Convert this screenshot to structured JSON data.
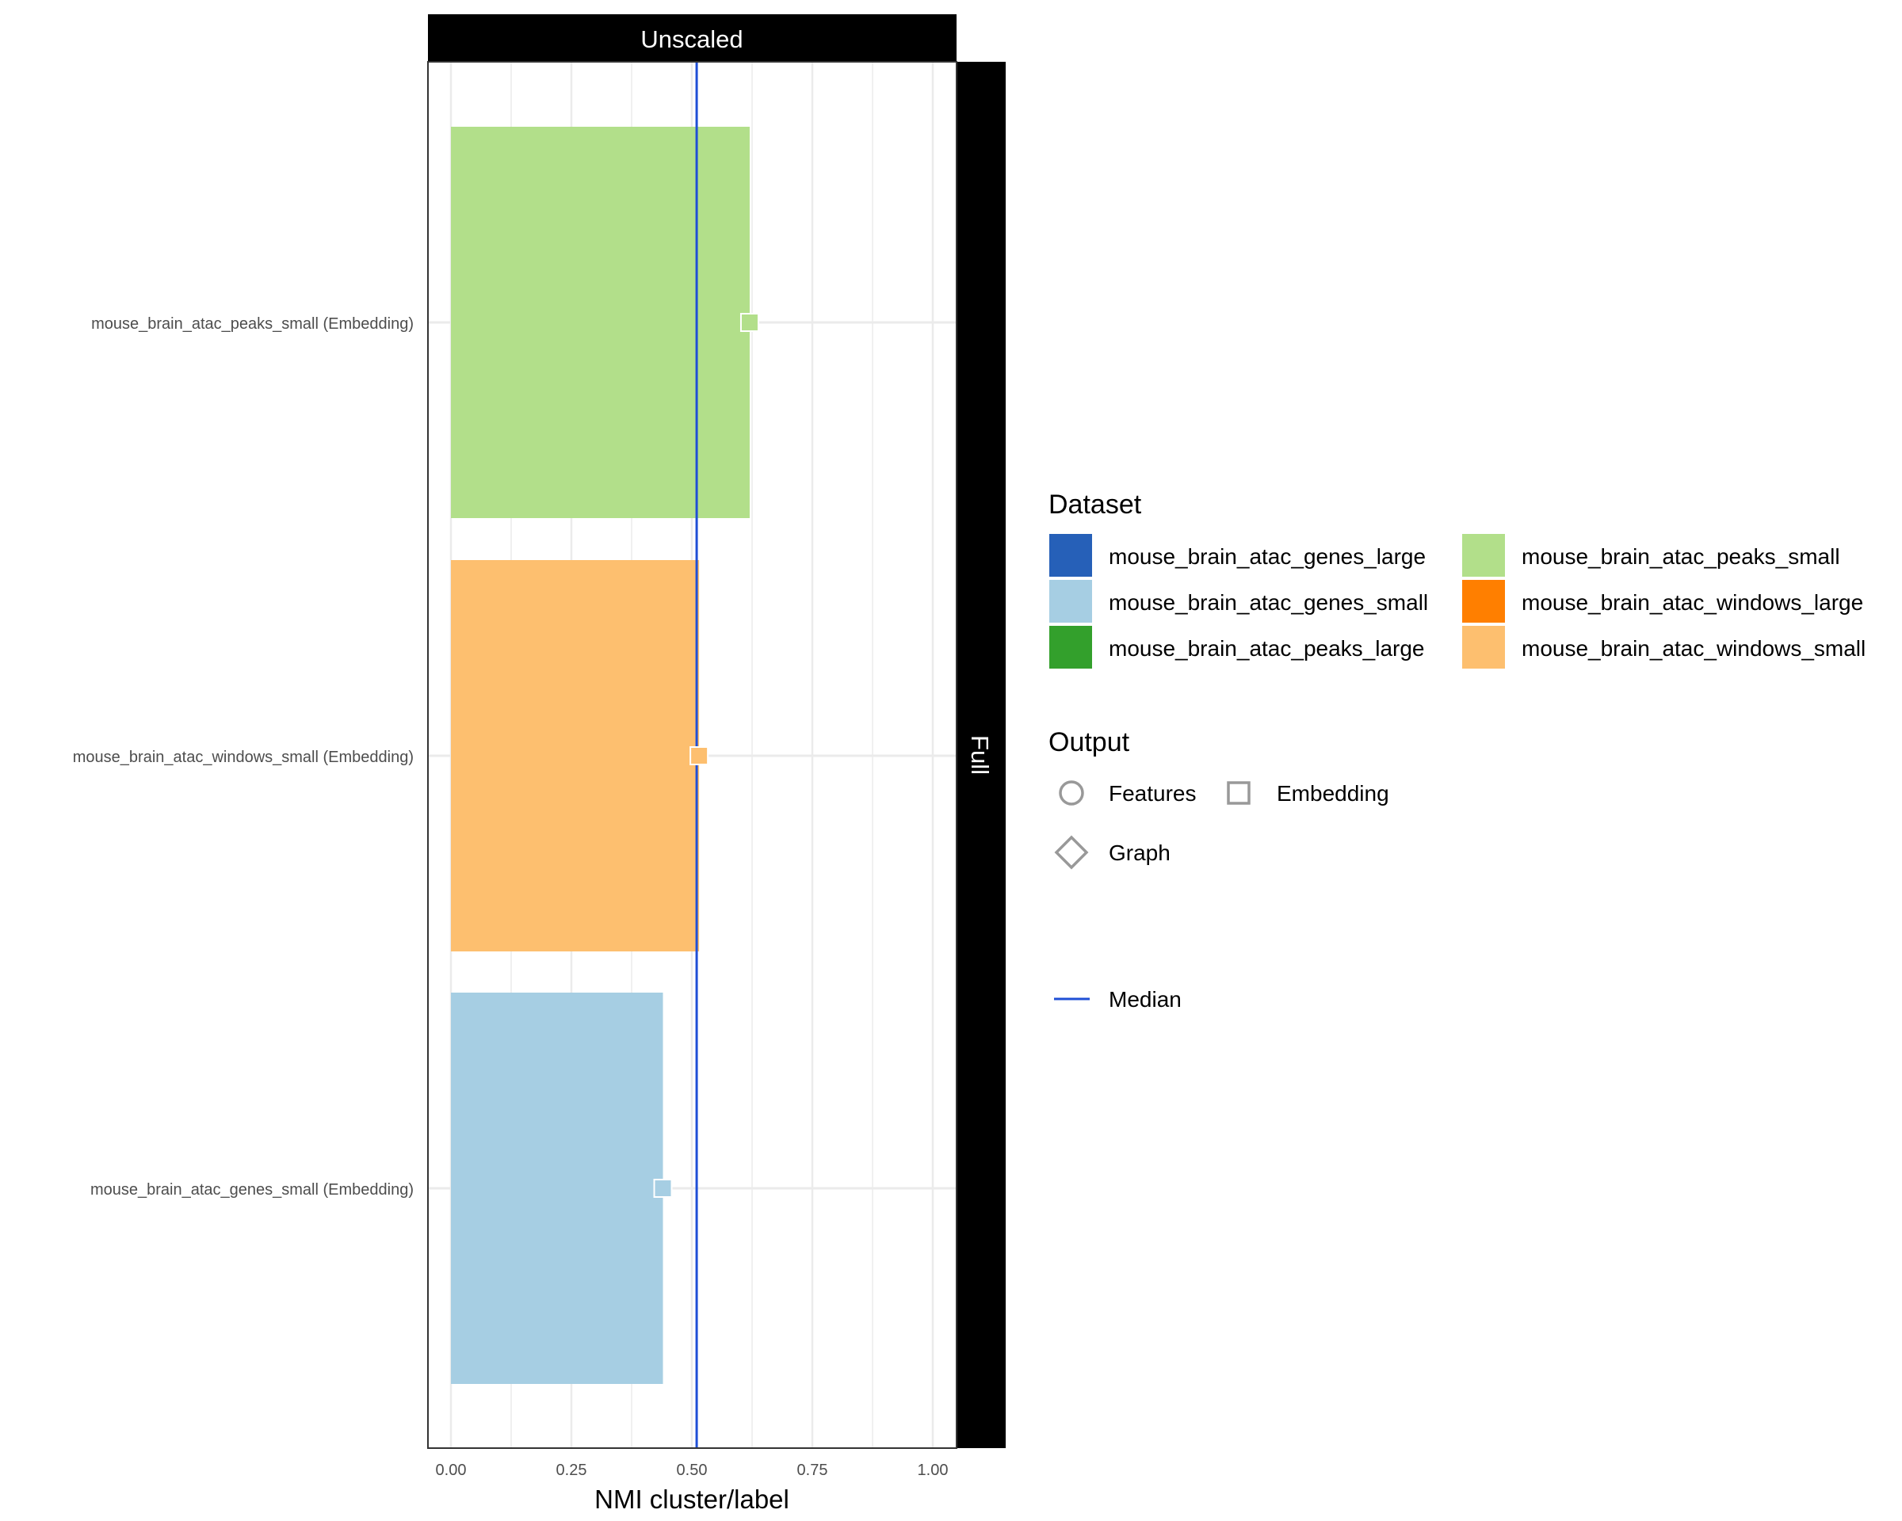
{
  "chart_data": {
    "type": "bar",
    "orientation": "horizontal",
    "facet_top_label": "Unscaled",
    "facet_side_label": "Full",
    "xlabel": "NMI cluster/label",
    "ylabel": "",
    "xlim": [
      0,
      1.05
    ],
    "x_ticks": [
      0,
      0.25,
      0.5,
      0.75,
      1.0
    ],
    "x_tick_labels": [
      "0.00",
      "0.25",
      "0.50",
      "0.75",
      "1.00"
    ],
    "grid": true,
    "categories": [
      "mouse_brain_atac_peaks_small (Embedding)",
      "mouse_brain_atac_windows_small (Embedding)",
      "mouse_brain_atac_genes_small (Embedding)"
    ],
    "values": [
      0.62,
      0.515,
      0.44
    ],
    "bar_colors": [
      "#b2df8a",
      "#fdbf6f",
      "#a6cee3"
    ],
    "marker_shape": "square",
    "median": 0.51,
    "median_color": "#1f4fd6",
    "legend_position": "right",
    "legends": {
      "dataset": {
        "title": "Dataset",
        "items": [
          {
            "label": "mouse_brain_atac_genes_large",
            "color": "#2660b8"
          },
          {
            "label": "mouse_brain_atac_genes_small",
            "color": "#a6cee3"
          },
          {
            "label": "mouse_brain_atac_peaks_large",
            "color": "#33a02c"
          },
          {
            "label": "mouse_brain_atac_peaks_small",
            "color": "#b2df8a"
          },
          {
            "label": "mouse_brain_atac_windows_large",
            "color": "#ff7f00"
          },
          {
            "label": "mouse_brain_atac_windows_small",
            "color": "#fdbf6f"
          }
        ]
      },
      "output": {
        "title": "Output",
        "items": [
          {
            "label": "Features",
            "shape": "circle"
          },
          {
            "label": "Embedding",
            "shape": "square"
          },
          {
            "label": "Graph",
            "shape": "diamond"
          }
        ]
      },
      "median": {
        "label": "Median"
      }
    }
  }
}
